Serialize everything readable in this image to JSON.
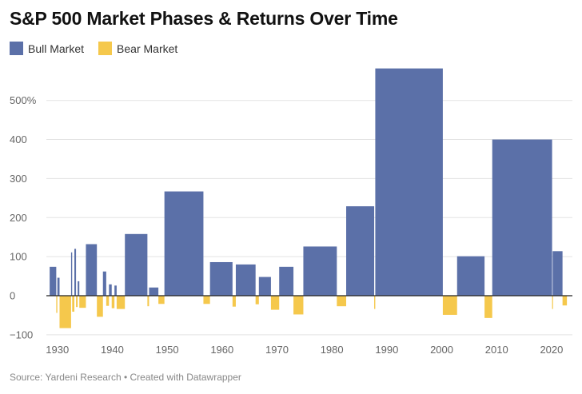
{
  "chart_data": {
    "type": "bar",
    "title": "S&P 500 Market Phases & Returns Over Time",
    "legend": [
      {
        "name": "Bull Market",
        "color": "#5b70a8"
      },
      {
        "name": "Bear Market",
        "color": "#f5c84c"
      }
    ],
    "colors": {
      "bull": "#5b70a8",
      "bear": "#f5c84c",
      "grid": "#e3e3e3",
      "zero": "#222222"
    },
    "x_ticks": [
      "1930",
      "1940",
      "1950",
      "1960",
      "1970",
      "1980",
      "1990",
      "2000",
      "2010",
      "2020"
    ],
    "y_ticks": [
      {
        "value": 500,
        "label": "500%"
      },
      {
        "value": 400,
        "label": "400"
      },
      {
        "value": 300,
        "label": "300"
      },
      {
        "value": 200,
        "label": "200"
      },
      {
        "value": 100,
        "label": "100"
      },
      {
        "value": 0,
        "label": "0"
      },
      {
        "value": -100,
        "label": "−100"
      }
    ],
    "xlim": [
      1928.0,
      2023.8
    ],
    "ylim": [
      -100,
      590
    ],
    "series": [
      {
        "name": "Bull Market",
        "periods": [
          {
            "start": 1928.6,
            "end": 1929.8,
            "value": 74
          },
          {
            "start": 1930.0,
            "end": 1930.4,
            "value": 46
          },
          {
            "start": 1932.5,
            "end": 1932.7,
            "value": 111
          },
          {
            "start": 1933.1,
            "end": 1933.4,
            "value": 120
          },
          {
            "start": 1933.7,
            "end": 1934.0,
            "value": 37
          },
          {
            "start": 1935.2,
            "end": 1937.2,
            "value": 132
          },
          {
            "start": 1938.3,
            "end": 1938.9,
            "value": 62
          },
          {
            "start": 1939.4,
            "end": 1939.9,
            "value": 29
          },
          {
            "start": 1940.4,
            "end": 1940.8,
            "value": 26
          },
          {
            "start": 1942.3,
            "end": 1946.4,
            "value": 158
          },
          {
            "start": 1946.7,
            "end": 1948.4,
            "value": 21
          },
          {
            "start": 1949.5,
            "end": 1956.6,
            "value": 267
          },
          {
            "start": 1957.8,
            "end": 1961.9,
            "value": 86
          },
          {
            "start": 1962.5,
            "end": 1966.1,
            "value": 80
          },
          {
            "start": 1966.7,
            "end": 1968.9,
            "value": 48
          },
          {
            "start": 1970.4,
            "end": 1973.0,
            "value": 74
          },
          {
            "start": 1974.8,
            "end": 1980.9,
            "value": 126
          },
          {
            "start": 1982.6,
            "end": 1987.7,
            "value": 229
          },
          {
            "start": 1987.9,
            "end": 2000.2,
            "value": 582
          },
          {
            "start": 2002.8,
            "end": 2007.8,
            "value": 101
          },
          {
            "start": 2009.2,
            "end": 2020.1,
            "value": 400
          },
          {
            "start": 2020.2,
            "end": 2022.0,
            "value": 114
          }
        ]
      },
      {
        "name": "Bear Market",
        "periods": [
          {
            "start": 1929.8,
            "end": 1930.0,
            "value": -44
          },
          {
            "start": 1930.4,
            "end": 1932.5,
            "value": -83
          },
          {
            "start": 1932.7,
            "end": 1933.1,
            "value": -41
          },
          {
            "start": 1933.4,
            "end": 1933.7,
            "value": -29
          },
          {
            "start": 1934.0,
            "end": 1935.2,
            "value": -31
          },
          {
            "start": 1937.2,
            "end": 1938.3,
            "value": -54
          },
          {
            "start": 1938.9,
            "end": 1939.4,
            "value": -26
          },
          {
            "start": 1939.9,
            "end": 1940.4,
            "value": -32
          },
          {
            "start": 1940.8,
            "end": 1942.3,
            "value": -34
          },
          {
            "start": 1946.4,
            "end": 1946.7,
            "value": -27
          },
          {
            "start": 1948.4,
            "end": 1949.5,
            "value": -21
          },
          {
            "start": 1956.6,
            "end": 1957.8,
            "value": -21
          },
          {
            "start": 1961.9,
            "end": 1962.5,
            "value": -28
          },
          {
            "start": 1966.1,
            "end": 1966.7,
            "value": -22
          },
          {
            "start": 1968.9,
            "end": 1970.4,
            "value": -36
          },
          {
            "start": 1973.0,
            "end": 1974.8,
            "value": -48
          },
          {
            "start": 1980.9,
            "end": 1982.6,
            "value": -27
          },
          {
            "start": 1987.7,
            "end": 1987.9,
            "value": -34
          },
          {
            "start": 2000.2,
            "end": 2002.8,
            "value": -49
          },
          {
            "start": 2007.8,
            "end": 2009.2,
            "value": -57
          },
          {
            "start": 2020.1,
            "end": 2020.2,
            "value": -34
          },
          {
            "start": 2022.0,
            "end": 2022.8,
            "value": -25
          }
        ]
      }
    ]
  },
  "source": "Source: Yardeni Research • Created with Datawrapper"
}
